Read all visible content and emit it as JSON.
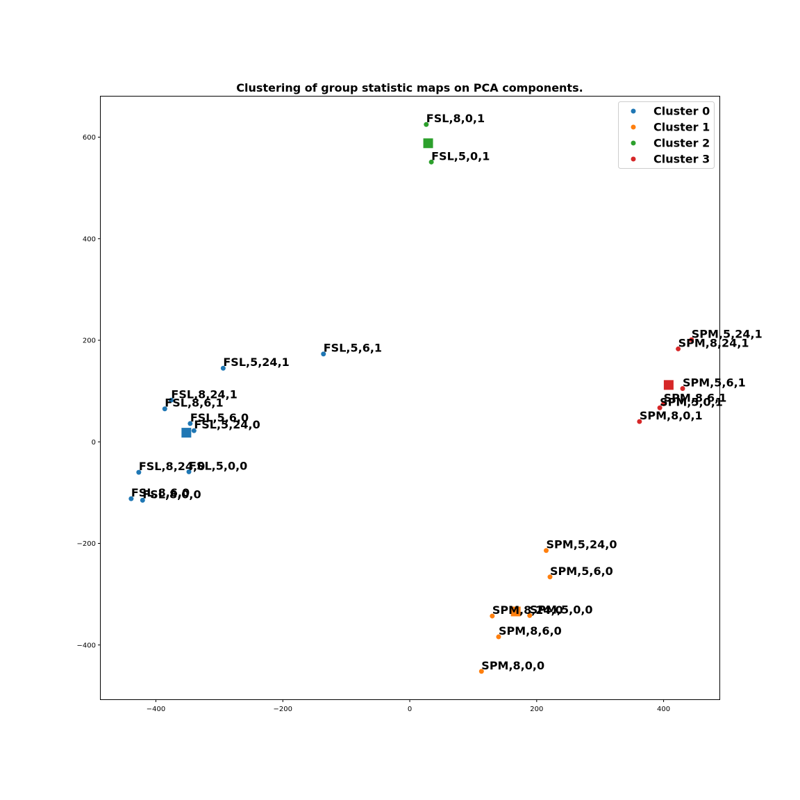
{
  "chart_data": {
    "type": "scatter",
    "title": "Clustering of group statistic maps on PCA components.",
    "xlabel": "",
    "ylabel": "",
    "xlim": [
      -487,
      488
    ],
    "ylim": [
      -507,
      680
    ],
    "xticks": [
      -400,
      -200,
      0,
      200,
      400
    ],
    "yticks": [
      -400,
      -200,
      0,
      200,
      400,
      600
    ],
    "xtick_labels": [
      "−400",
      "−200",
      "0",
      "200",
      "400"
    ],
    "ytick_labels": [
      "−400",
      "−200",
      "0",
      "200",
      "400",
      "600"
    ],
    "grid": false,
    "legend_position": "top-right",
    "series": [
      {
        "name": "Cluster 0",
        "color": "#1f77b4",
        "centroid": [
          -352,
          18
        ],
        "points": [
          {
            "label": "FSL,5,6,1",
            "x": -136,
            "y": 173
          },
          {
            "label": "FSL,5,24,1",
            "x": -294,
            "y": 145
          },
          {
            "label": "FSL,8,24,1",
            "x": -376,
            "y": 82
          },
          {
            "label": "FSL,8,6,1",
            "x": -386,
            "y": 65
          },
          {
            "label": "FSL,5,6,0",
            "x": -346,
            "y": 36
          },
          {
            "label": "FSL,5,24,0",
            "x": -340,
            "y": 22
          },
          {
            "label": "FSL,8,24,0",
            "x": -427,
            "y": -60
          },
          {
            "label": "FSL,5,0,0",
            "x": -348,
            "y": -59
          },
          {
            "label": "FSL,8,6,0",
            "x": -439,
            "y": -112
          },
          {
            "label": "FSL,8,0,0",
            "x": -421,
            "y": -115
          }
        ]
      },
      {
        "name": "Cluster 1",
        "color": "#ff7f0e",
        "centroid": [
          167,
          -334
        ],
        "points": [
          {
            "label": "SPM,5,24,0",
            "x": 215,
            "y": -214
          },
          {
            "label": "SPM,5,6,0",
            "x": 221,
            "y": -266
          },
          {
            "label": "SPM,8,24,0",
            "x": 130,
            "y": -343
          },
          {
            "label": "SPM,5,0,0",
            "x": 189,
            "y": -342
          },
          {
            "label": "SPM,8,6,0",
            "x": 140,
            "y": -384
          },
          {
            "label": "SPM,8,0,0",
            "x": 113,
            "y": -452
          }
        ]
      },
      {
        "name": "Cluster 2",
        "color": "#2ca02c",
        "centroid": [
          29,
          588
        ],
        "points": [
          {
            "label": "FSL,8,0,1",
            "x": 26,
            "y": 625
          },
          {
            "label": "FSL,5,0,1",
            "x": 34,
            "y": 551
          }
        ]
      },
      {
        "name": "Cluster 3",
        "color": "#d62728",
        "centroid": [
          408,
          112
        ],
        "points": [
          {
            "label": "SPM,5,24,1",
            "x": 444,
            "y": 201
          },
          {
            "label": "SPM,8,24,1",
            "x": 423,
            "y": 183
          },
          {
            "label": "SPM,5,6,1",
            "x": 430,
            "y": 105
          },
          {
            "label": "SPM,8,6,1",
            "x": 400,
            "y": 75
          },
          {
            "label": "SPM,5,0,1",
            "x": 394,
            "y": 67
          },
          {
            "label": "SPM,8,0,1",
            "x": 362,
            "y": 40
          }
        ]
      }
    ]
  }
}
